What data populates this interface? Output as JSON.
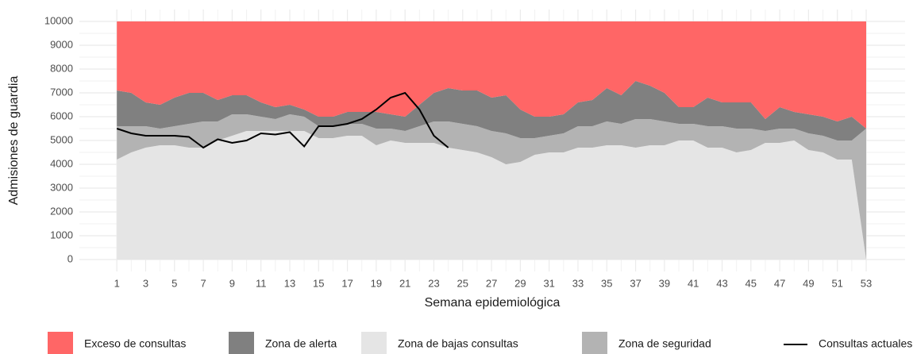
{
  "chart_data": {
    "type": "area",
    "x_label": "Semana epidemiológica",
    "y_label": "Admisiones de guardia",
    "x": [
      1,
      2,
      3,
      4,
      5,
      6,
      7,
      8,
      9,
      10,
      11,
      12,
      13,
      14,
      15,
      16,
      17,
      18,
      19,
      20,
      21,
      22,
      23,
      24,
      25,
      26,
      27,
      28,
      29,
      30,
      31,
      32,
      33,
      34,
      35,
      36,
      37,
      38,
      39,
      40,
      41,
      42,
      43,
      44,
      45,
      46,
      47,
      48,
      49,
      50,
      51,
      52,
      53
    ],
    "stacked": true,
    "series": [
      {
        "name": "Zona de bajas consultas",
        "color": "#e5e5e5",
        "type": "area",
        "values": [
          4200,
          4500,
          4700,
          4800,
          4800,
          4700,
          4700,
          5000,
          5200,
          5400,
          5400,
          5400,
          5400,
          5400,
          5100,
          5100,
          5200,
          5200,
          4800,
          5000,
          4900,
          4900,
          4900,
          4700,
          4600,
          4500,
          4300,
          4000,
          4100,
          4400,
          4500,
          4500,
          4700,
          4700,
          4800,
          4800,
          4700,
          4800,
          4800,
          5000,
          5000,
          4700,
          4700,
          4500,
          4600,
          4900,
          4900,
          5000,
          4600,
          4500,
          4200,
          4200,
          0
        ]
      },
      {
        "name": "Zona de seguridad",
        "color": "#b3b3b3",
        "type": "area",
        "values": [
          1400,
          1100,
          900,
          700,
          800,
          1000,
          1100,
          800,
          900,
          700,
          600,
          500,
          700,
          600,
          500,
          500,
          500,
          500,
          700,
          500,
          500,
          700,
          900,
          1100,
          1100,
          1100,
          1100,
          1300,
          1000,
          700,
          700,
          800,
          900,
          900,
          1000,
          900,
          1200,
          1100,
          1000,
          700,
          700,
          900,
          900,
          1000,
          900,
          500,
          600,
          500,
          700,
          700,
          800,
          800,
          5500
        ]
      },
      {
        "name": "Zona de alerta",
        "color": "#808080",
        "type": "area",
        "values": [
          1500,
          1400,
          1000,
          1000,
          1200,
          1300,
          1200,
          900,
          800,
          800,
          600,
          500,
          400,
          300,
          400,
          400,
          500,
          500,
          700,
          600,
          600,
          900,
          1200,
          1400,
          1400,
          1500,
          1400,
          1600,
          1200,
          900,
          800,
          800,
          1000,
          1100,
          1400,
          1200,
          1600,
          1400,
          1200,
          700,
          700,
          1200,
          1000,
          1100,
          1100,
          500,
          900,
          700,
          800,
          800,
          800,
          1000,
          0
        ]
      },
      {
        "name": "Exceso de consultas",
        "color": "#ff6666",
        "type": "area",
        "values": [
          2900,
          3000,
          3400,
          3500,
          3200,
          3000,
          3000,
          3300,
          3100,
          3100,
          3400,
          3600,
          3500,
          3700,
          4000,
          4000,
          3800,
          3800,
          3800,
          3900,
          4000,
          3500,
          3000,
          2800,
          2900,
          2900,
          3200,
          3100,
          3700,
          4000,
          4000,
          3900,
          3400,
          3300,
          2800,
          3100,
          2500,
          2700,
          3000,
          3600,
          3600,
          3200,
          3400,
          3400,
          3400,
          4100,
          3600,
          3800,
          3900,
          4000,
          4200,
          4000,
          4500
        ]
      },
      {
        "name": "Consultas actuales",
        "color": "#000000",
        "type": "line",
        "values": [
          5500,
          5300,
          5200,
          5200,
          5200,
          5150,
          4700,
          5050,
          4900,
          5000,
          5300,
          5250,
          5350,
          4750,
          5600,
          5600,
          5700,
          5900,
          6300,
          6800,
          7000,
          6300,
          5200,
          4700,
          null,
          null,
          null,
          null,
          null,
          null,
          null,
          null,
          null,
          null,
          null,
          null,
          null,
          null,
          null,
          null,
          null,
          null,
          null,
          null,
          null,
          null,
          null,
          null,
          null,
          null,
          null,
          null,
          null
        ]
      }
    ],
    "xlim": [
      -1.6,
      55.7
    ],
    "xticks": [
      1,
      3,
      5,
      7,
      9,
      11,
      13,
      15,
      17,
      19,
      21,
      23,
      25,
      27,
      29,
      31,
      33,
      35,
      37,
      39,
      41,
      43,
      45,
      47,
      49,
      51,
      53
    ],
    "ylim": [
      -500,
      10500
    ],
    "yticks": [
      0,
      1000,
      2000,
      3000,
      4000,
      5000,
      6000,
      7000,
      8000,
      9000,
      10000
    ],
    "grid": true,
    "legend": "bottom"
  }
}
